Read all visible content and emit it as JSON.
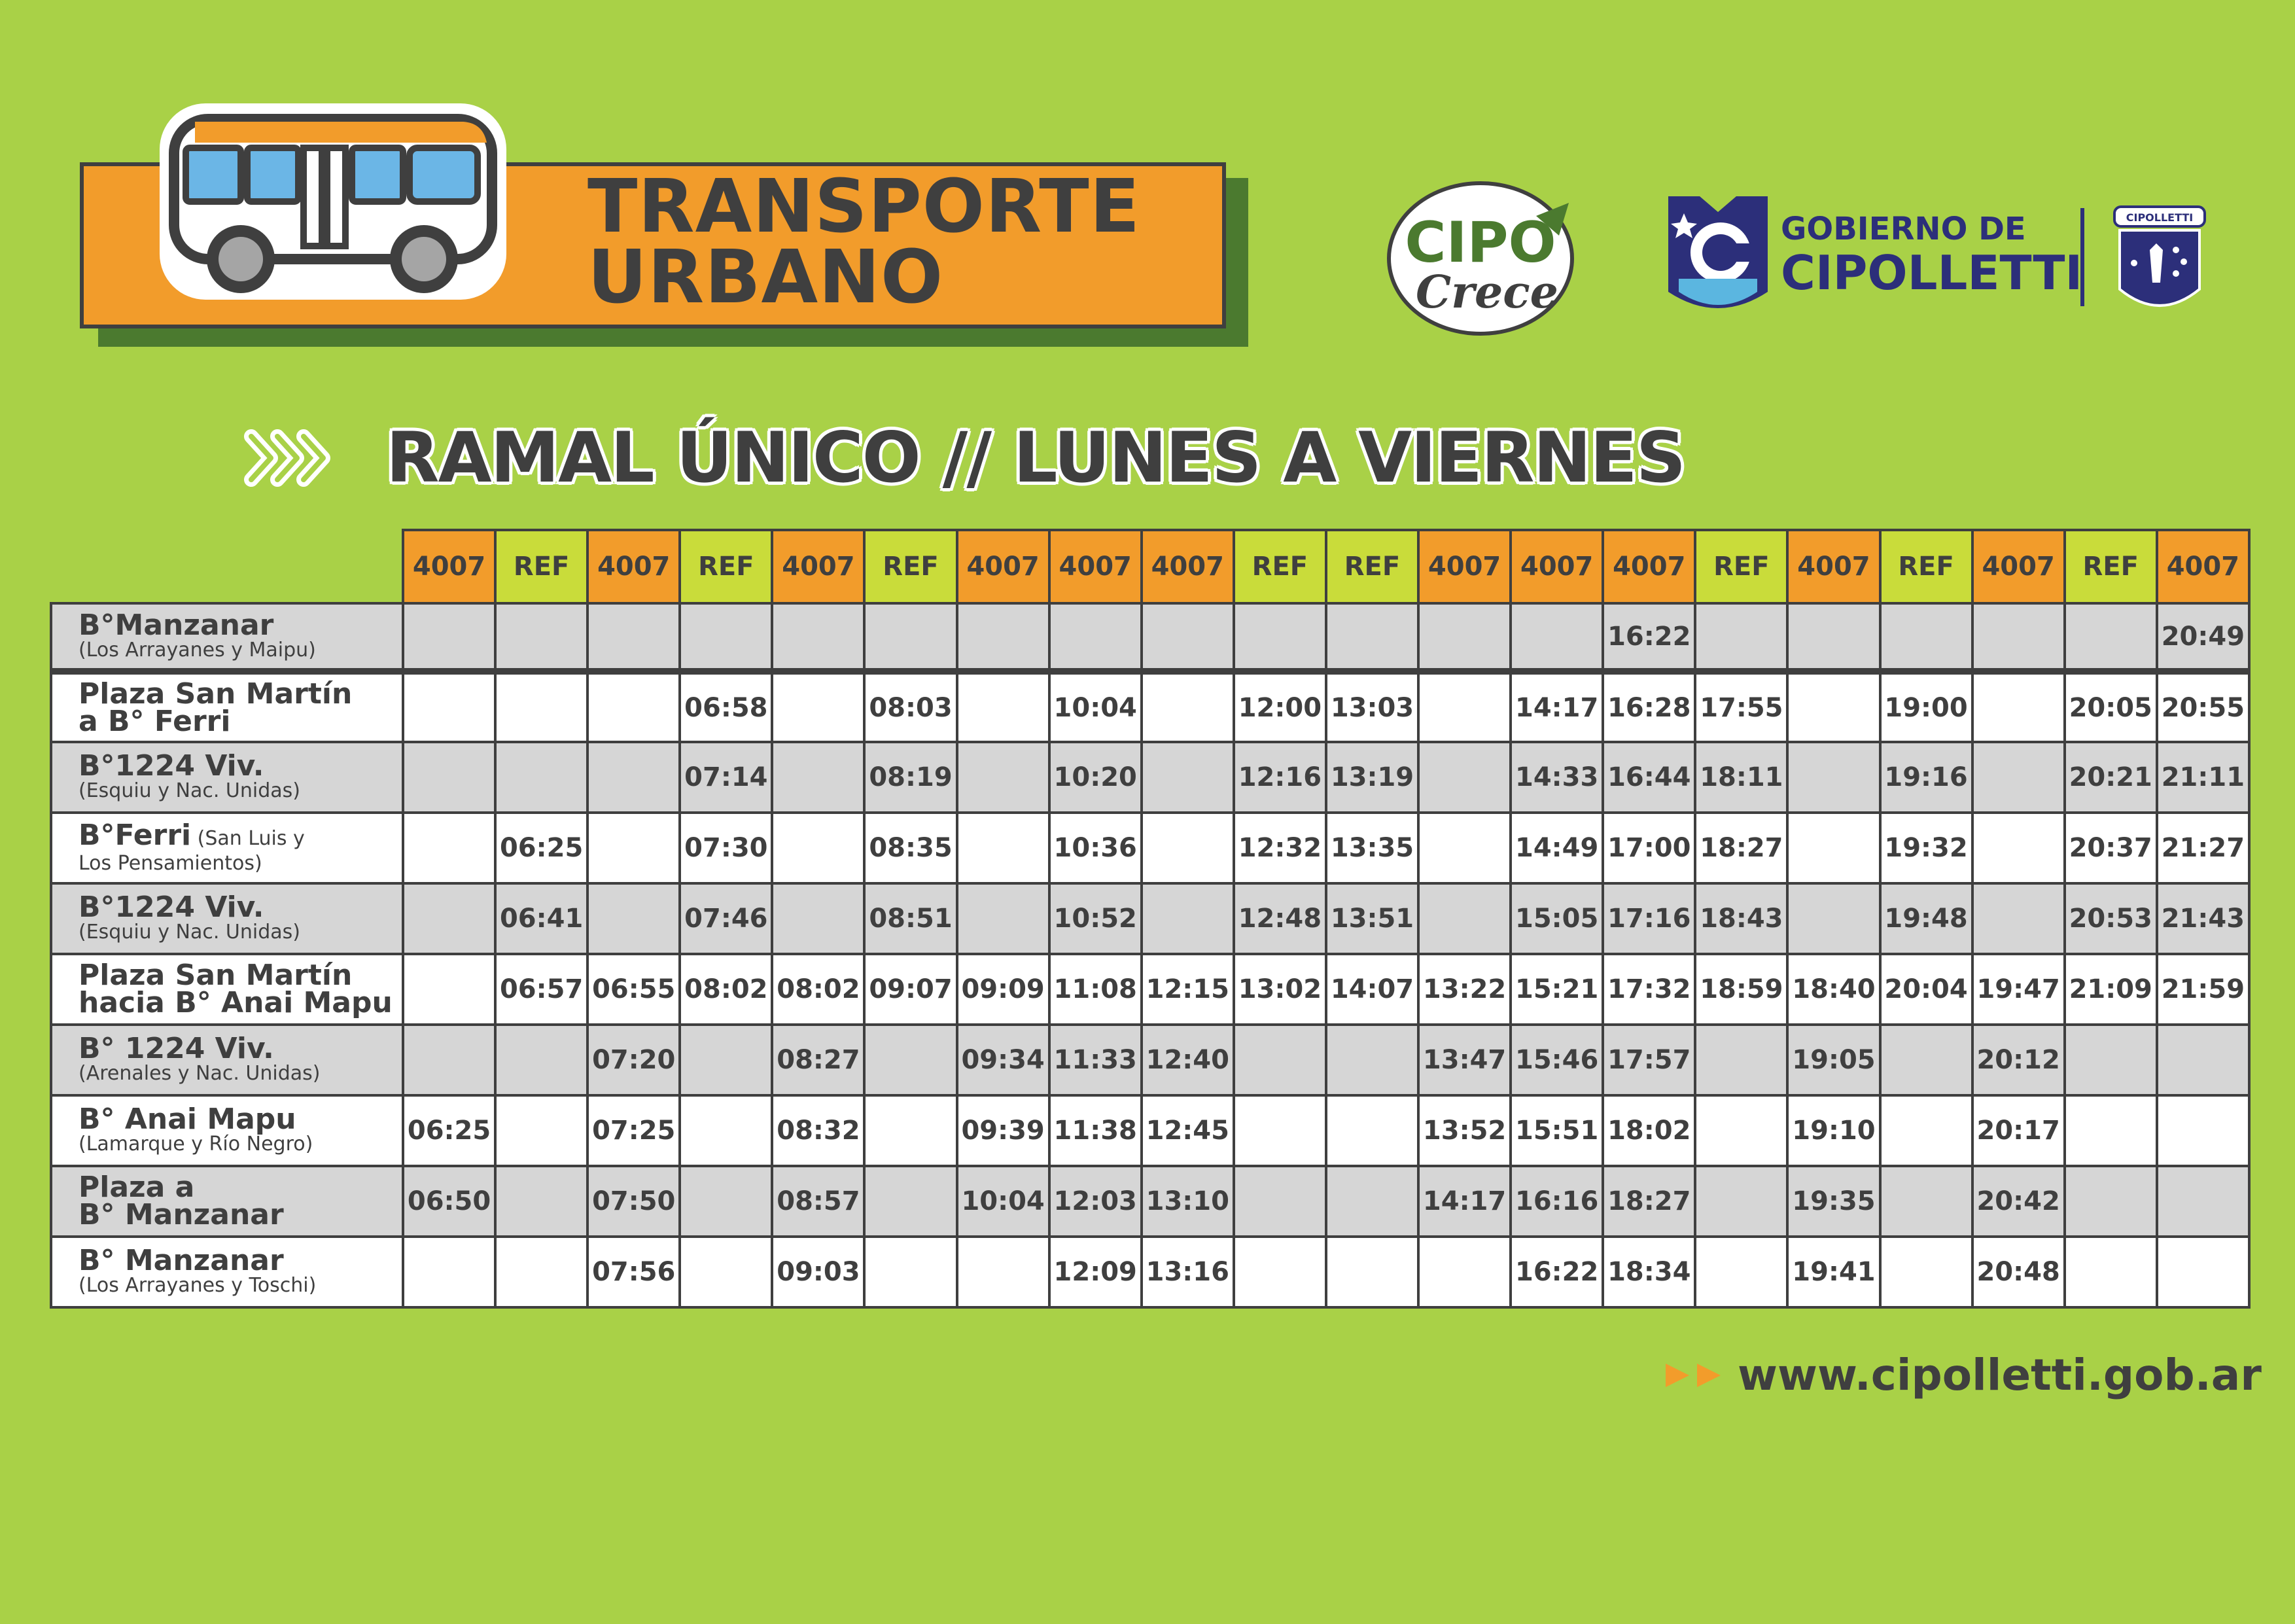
{
  "header": {
    "title_line1": "TRANSPORTE",
    "title_line2": "URBANO"
  },
  "logos": {
    "cipo_line1": "CIPO",
    "cipo_line2": "Crece",
    "gob_line1": "GOBIERNO DE",
    "gob_line2": "CIPOLLETTI",
    "escudo_text": "CIPOLLETTI"
  },
  "subtitle": "RAMAL ÚNICO // LUNES A VIERNES",
  "footer": {
    "url": "www.cipolletti.gob.ar"
  },
  "colors": {
    "background": "#a9d147",
    "orange": "#f29c2b",
    "lime": "#c9dc3a",
    "dark": "#3f3f3f",
    "navy": "#2c2f7a",
    "row_alt": "#d6d6d6"
  },
  "table": {
    "columns": [
      "4007",
      "REF",
      "4007",
      "REF",
      "4007",
      "REF",
      "4007",
      "4007",
      "4007",
      "REF",
      "REF",
      "4007",
      "4007",
      "4007",
      "REF",
      "4007",
      "REF",
      "4007",
      "REF",
      "4007"
    ],
    "rows": [
      {
        "stop": "B°Manzanar",
        "sub": "(Los Arrayanes y Maipu)",
        "times": [
          "",
          "",
          "",
          "",
          "",
          "",
          "",
          "",
          "",
          "",
          "",
          "",
          "",
          "16:22",
          "",
          "",
          "",
          "",
          "",
          "20:49"
        ]
      },
      {
        "stop": "Plaza San Martín",
        "stop2": "a B° Ferri",
        "sub": "",
        "times": [
          "",
          "",
          "",
          "06:58",
          "",
          "08:03",
          "",
          "10:04",
          "",
          "12:00",
          "13:03",
          "",
          "14:17",
          "16:28",
          "17:55",
          "",
          "19:00",
          "",
          "20:05",
          "20:55"
        ]
      },
      {
        "stop": "B°1224 Viv.",
        "sub": "(Esquiu y Nac. Unidas)",
        "times": [
          "",
          "",
          "",
          "07:14",
          "",
          "08:19",
          "",
          "10:20",
          "",
          "12:16",
          "13:19",
          "",
          "14:33",
          "16:44",
          "18:11",
          "",
          "19:16",
          "",
          "20:21",
          "21:11"
        ]
      },
      {
        "stop": "B°Ferri",
        "inline_sub": " (San Luis y",
        "sub": "Los Pensamientos)",
        "times": [
          "",
          "06:25",
          "",
          "07:30",
          "",
          "08:35",
          "",
          "10:36",
          "",
          "12:32",
          "13:35",
          "",
          "14:49",
          "17:00",
          "18:27",
          "",
          "19:32",
          "",
          "20:37",
          "21:27"
        ]
      },
      {
        "stop": "B°1224 Viv.",
        "sub": "(Esquiu y Nac. Unidas)",
        "times": [
          "",
          "06:41",
          "",
          "07:46",
          "",
          "08:51",
          "",
          "10:52",
          "",
          "12:48",
          "13:51",
          "",
          "15:05",
          "17:16",
          "18:43",
          "",
          "19:48",
          "",
          "20:53",
          "21:43"
        ]
      },
      {
        "stop": "Plaza San Martín",
        "stop2": "hacia B° Anai Mapu",
        "sub": "",
        "times": [
          "",
          "06:57",
          "06:55",
          "08:02",
          "08:02",
          "09:07",
          "09:09",
          "11:08",
          "12:15",
          "13:02",
          "14:07",
          "13:22",
          "15:21",
          "17:32",
          "18:59",
          "18:40",
          "20:04",
          "19:47",
          "21:09",
          "21:59"
        ]
      },
      {
        "stop": "B° 1224 Viv.",
        "sub": "(Arenales y Nac. Unidas)",
        "times": [
          "",
          "",
          "07:20",
          "",
          "08:27",
          "",
          "09:34",
          "11:33",
          "12:40",
          "",
          "",
          "13:47",
          "15:46",
          "17:57",
          "",
          "19:05",
          "",
          "20:12",
          "",
          ""
        ]
      },
      {
        "stop": "B° Anai Mapu",
        "sub": "(Lamarque y Río Negro)",
        "times": [
          "06:25",
          "",
          "07:25",
          "",
          "08:32",
          "",
          "09:39",
          "11:38",
          "12:45",
          "",
          "",
          "13:52",
          "15:51",
          "18:02",
          "",
          "19:10",
          "",
          "20:17",
          "",
          ""
        ]
      },
      {
        "stop": "Plaza a",
        "stop2": "B° Manzanar",
        "sub": "",
        "times": [
          "06:50",
          "",
          "07:50",
          "",
          "08:57",
          "",
          "10:04",
          "12:03",
          "13:10",
          "",
          "",
          "14:17",
          "16:16",
          "18:27",
          "",
          "19:35",
          "",
          "20:42",
          "",
          ""
        ]
      },
      {
        "stop": "B° Manzanar",
        "sub": "(Los Arrayanes y Toschi)",
        "times": [
          "",
          "",
          "07:56",
          "",
          "09:03",
          "",
          "",
          "12:09",
          "13:16",
          "",
          "",
          "",
          "16:22",
          "18:34",
          "",
          "19:41",
          "",
          "20:48",
          "",
          ""
        ]
      }
    ]
  }
}
